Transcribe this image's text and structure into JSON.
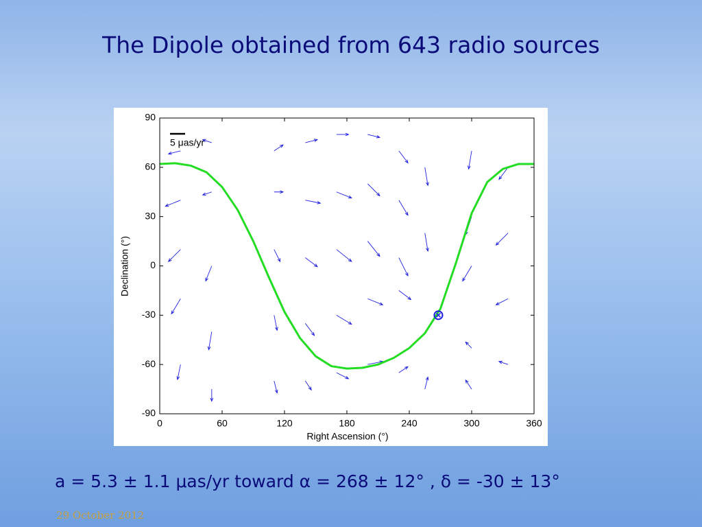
{
  "slide": {
    "title": "The Dipole obtained from 643 radio sources",
    "caption": "a = 5.3 ± 1.1 μas/yr toward α = 268 ± 12° , δ = -30 ± 13°",
    "footer": "29 October 2012"
  },
  "chart_data": {
    "type": "vector-field",
    "xlabel": "Right Ascension (°)",
    "ylabel": "Declination (°)",
    "xlim": [
      0,
      360
    ],
    "ylim": [
      -90,
      90
    ],
    "xticks": [
      0,
      60,
      120,
      180,
      240,
      300,
      360
    ],
    "yticks": [
      -90,
      -60,
      -30,
      0,
      30,
      60,
      90
    ],
    "scale_label": "5 μas/yr",
    "scale_value": 5,
    "arrow_color": "#1f1fe0",
    "arrows": {
      "ra": [
        20,
        20,
        20,
        20,
        20,
        50,
        50,
        50,
        50,
        50,
        110,
        110,
        110,
        110,
        110,
        140,
        140,
        140,
        140,
        140,
        170,
        170,
        170,
        170,
        170,
        200,
        200,
        200,
        200,
        200,
        230,
        230,
        230,
        230,
        230,
        255,
        255,
        255,
        300,
        300,
        300,
        300,
        300,
        335,
        335,
        335,
        335
      ],
      "dec": [
        70,
        40,
        10,
        -20,
        -60,
        75,
        45,
        0,
        -40,
        -75,
        70,
        45,
        10,
        -30,
        -70,
        75,
        40,
        5,
        -35,
        -70,
        80,
        45,
        10,
        -30,
        -65,
        80,
        50,
        15,
        -20,
        -60,
        70,
        40,
        5,
        -15,
        -65,
        60,
        20,
        -75,
        70,
        30,
        0,
        -50,
        -75,
        60,
        20,
        -20,
        -60
      ],
      "u": [
        -4,
        -5,
        -4,
        -3,
        -1,
        -3,
        -3,
        -2,
        -1,
        0,
        3,
        3,
        2,
        1,
        1,
        4,
        5,
        4,
        3,
        2,
        4,
        5,
        5,
        5,
        4,
        4,
        4,
        4,
        5,
        5,
        3,
        3,
        3,
        4,
        3,
        1,
        1,
        1,
        -1,
        -2,
        -3,
        -2,
        -2,
        -3,
        -4,
        -4,
        -3
      ],
      "v": [
        -1,
        -2,
        -4,
        -5,
        -5,
        1,
        -1,
        -5,
        -6,
        -4,
        2,
        0,
        -4,
        -5,
        -4,
        1,
        -1,
        -3,
        -4,
        -3,
        0,
        -2,
        -4,
        -3,
        -2,
        -1,
        -4,
        -5,
        -2,
        1,
        -4,
        -5,
        -6,
        -3,
        2,
        -6,
        -6,
        4,
        -6,
        -6,
        -5,
        2,
        3,
        -4,
        -4,
        -2,
        1
      ]
    },
    "curve": {
      "color": "#22dd22",
      "x": [
        0,
        15,
        30,
        45,
        60,
        75,
        90,
        105,
        120,
        135,
        150,
        165,
        180,
        195,
        210,
        225,
        240,
        255,
        270,
        285,
        300,
        315,
        330,
        345,
        360
      ],
      "y": [
        62,
        62.5,
        61,
        57,
        48,
        34,
        15,
        -7,
        -28,
        -44,
        -55,
        -61,
        -62.5,
        -62,
        -60,
        -56,
        -50,
        -41,
        -26,
        2,
        32,
        51,
        59,
        62,
        62
      ]
    },
    "dipole": {
      "ra": 268,
      "dec": -30,
      "color": "#1f1fe0"
    }
  }
}
